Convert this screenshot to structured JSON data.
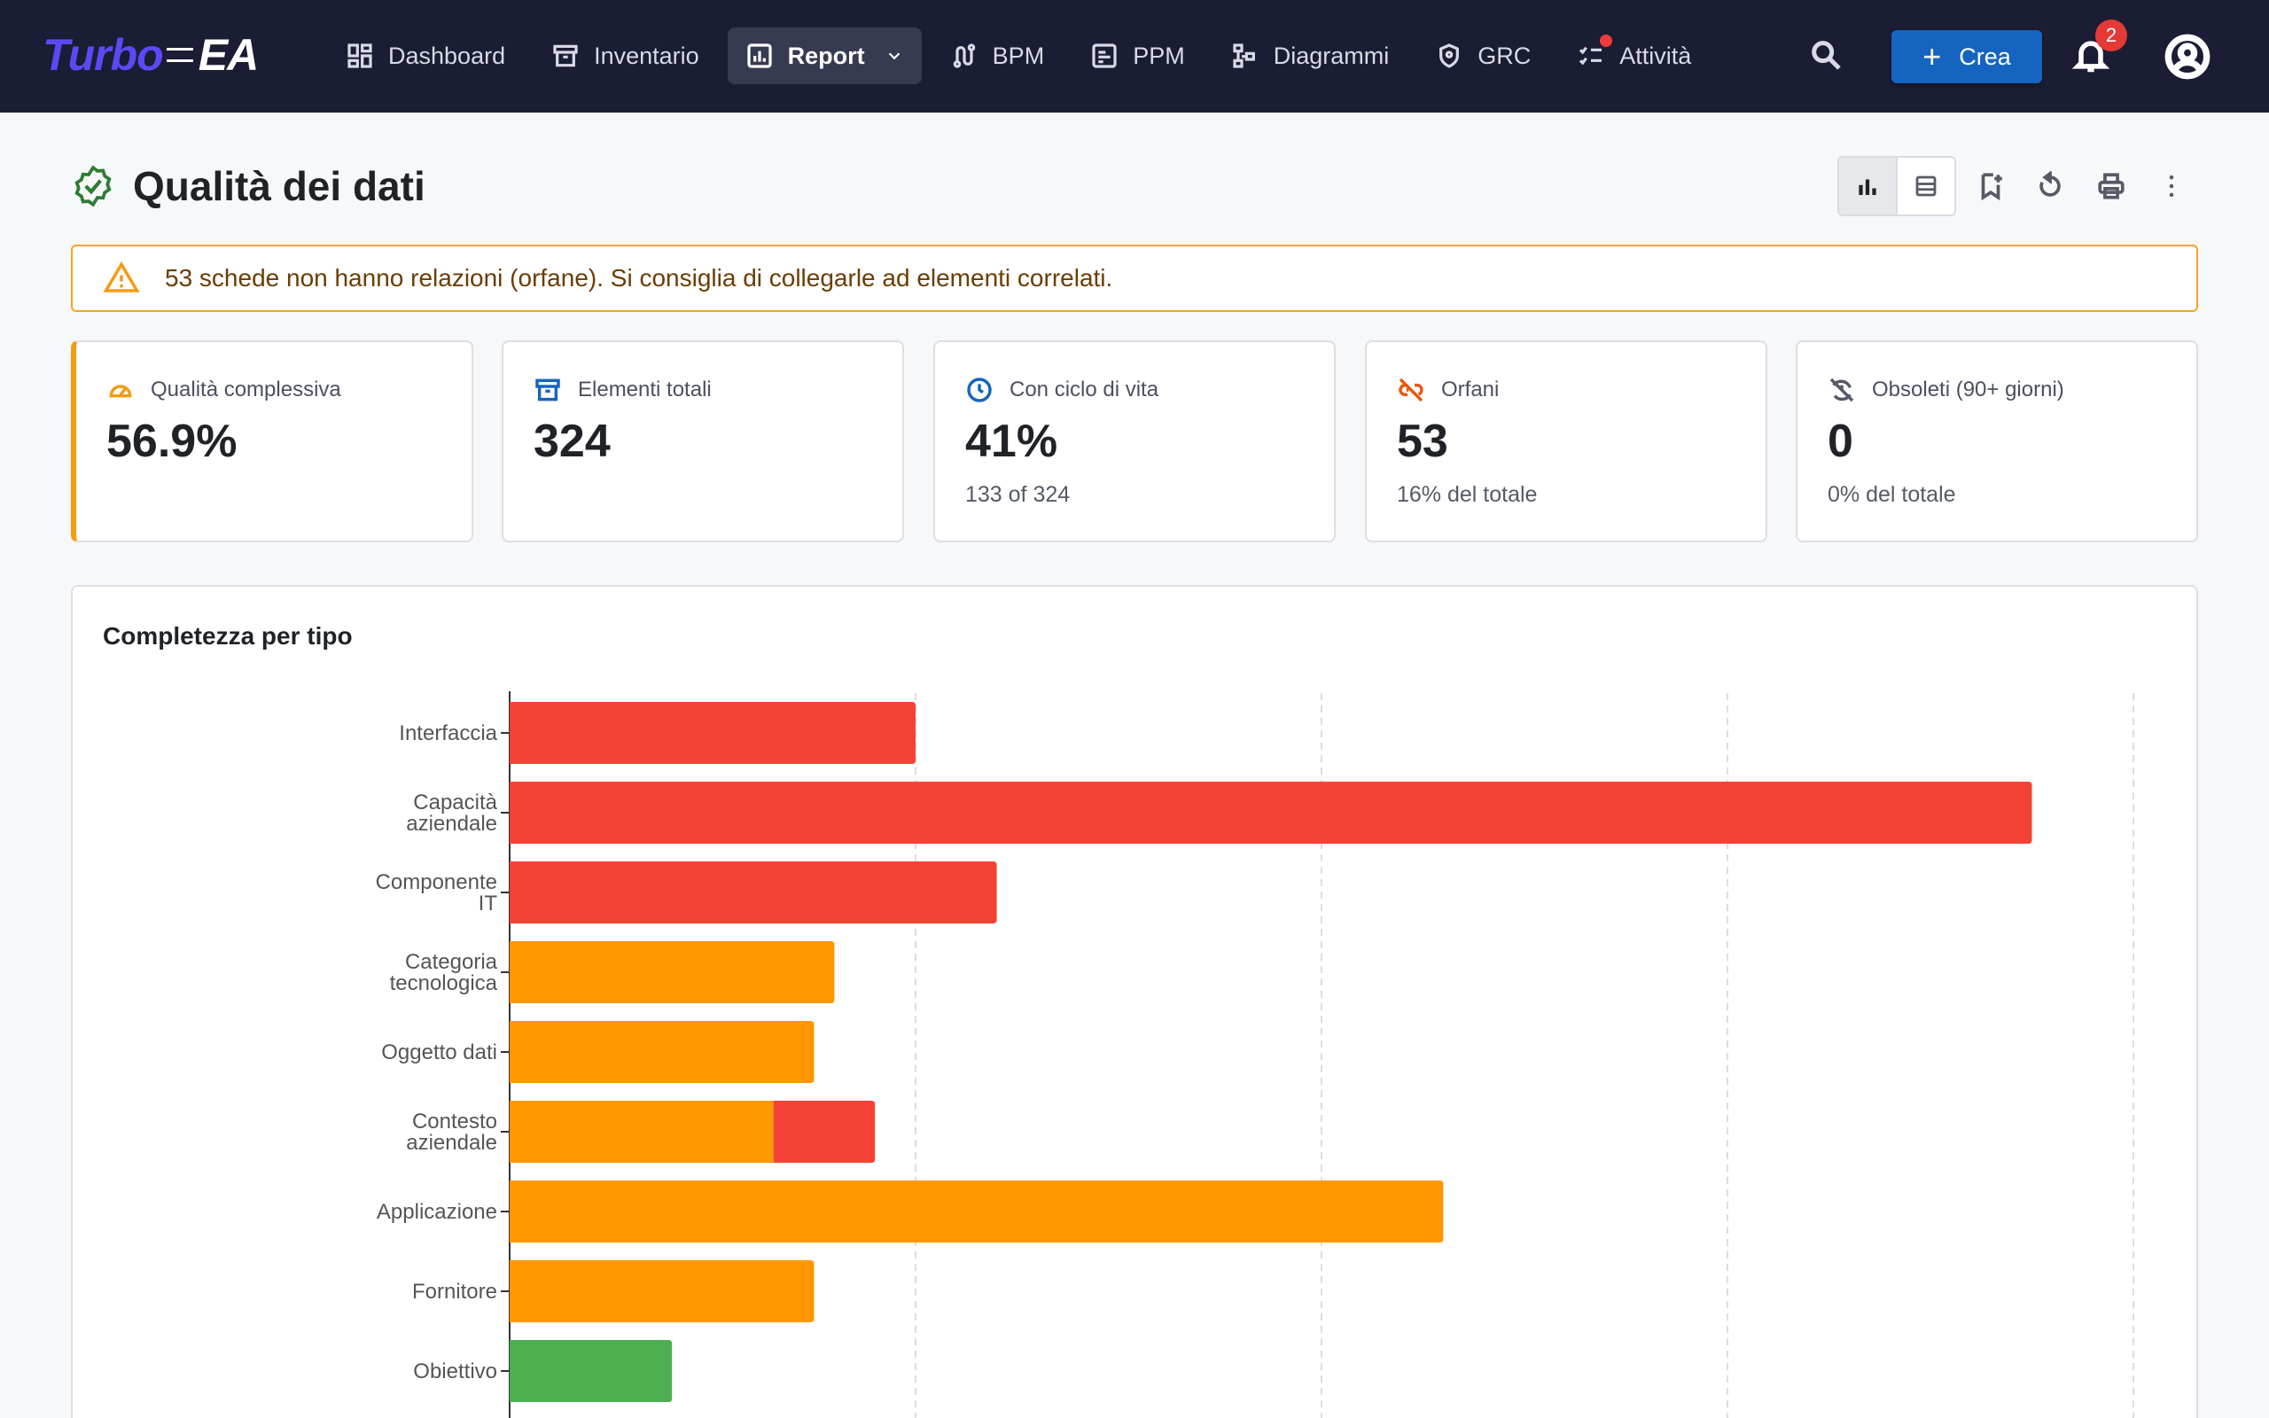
{
  "brand": {
    "part1": "Turbo",
    "part2": "EA"
  },
  "nav": {
    "items": [
      {
        "label": "Dashboard",
        "icon": "dashboard-icon"
      },
      {
        "label": "Inventario",
        "icon": "archive-icon"
      },
      {
        "label": "Report",
        "icon": "report-icon",
        "active": true
      },
      {
        "label": "BPM",
        "icon": "route-icon"
      },
      {
        "label": "PPM",
        "icon": "project-icon"
      },
      {
        "label": "Diagrammi",
        "icon": "diagram-icon"
      },
      {
        "label": "GRC",
        "icon": "shield-icon"
      },
      {
        "label": "Attività",
        "icon": "checklist-icon",
        "has_dot": true
      }
    ],
    "create_label": "Crea",
    "notifications_count": "2"
  },
  "page": {
    "title": "Qualità dei dati"
  },
  "alert": {
    "text": "53 schede non hanno relazioni (orfane). Si consiglia di collegarle ad elementi correlati."
  },
  "kpis": [
    {
      "label": "Qualità complessiva",
      "value": "56.9%",
      "sub": "",
      "icon": "speedometer-icon",
      "icon_color": "#f39c12"
    },
    {
      "label": "Elementi totali",
      "value": "324",
      "sub": "",
      "icon": "inventory-icon",
      "icon_color": "#1565c0"
    },
    {
      "label": "Con ciclo di vita",
      "value": "41%",
      "sub": "133 of 324",
      "icon": "clock-icon",
      "icon_color": "#1565c0"
    },
    {
      "label": "Orfani",
      "value": "53",
      "sub": "16% del totale",
      "icon": "link-off-icon",
      "icon_color": "#e8590c"
    },
    {
      "label": "Obsoleti (90+ giorni)",
      "value": "0",
      "sub": "0% del totale",
      "icon": "update-off-icon",
      "icon_color": "#555a66"
    }
  ],
  "chart_panel": {
    "title": "Completezza per tipo"
  },
  "chart_data": {
    "type": "bar",
    "orientation": "horizontal",
    "stacked": true,
    "categories": [
      [
        "Interfaccia"
      ],
      [
        "Capacità",
        "aziendale"
      ],
      [
        "Componente",
        "IT"
      ],
      [
        "Categoria",
        "tecnologica"
      ],
      [
        "Oggetto dati"
      ],
      [
        "Contesto",
        "aziendale"
      ],
      [
        "Applicazione"
      ],
      [
        "Fornitore"
      ],
      [
        "Obiettivo"
      ]
    ],
    "series": [
      {
        "color": "#4caf50",
        "values": [
          0,
          0,
          0,
          0,
          0,
          0,
          0,
          0,
          8
        ]
      },
      {
        "color": "#ff9800",
        "values": [
          0,
          0,
          0,
          16,
          15,
          13,
          46,
          15,
          0
        ]
      },
      {
        "color": "#f44336",
        "values": [
          20,
          75,
          24,
          0,
          0,
          5,
          0,
          0,
          0
        ]
      }
    ],
    "xlim": [
      0,
      80
    ],
    "grid": true,
    "legend": "none"
  }
}
